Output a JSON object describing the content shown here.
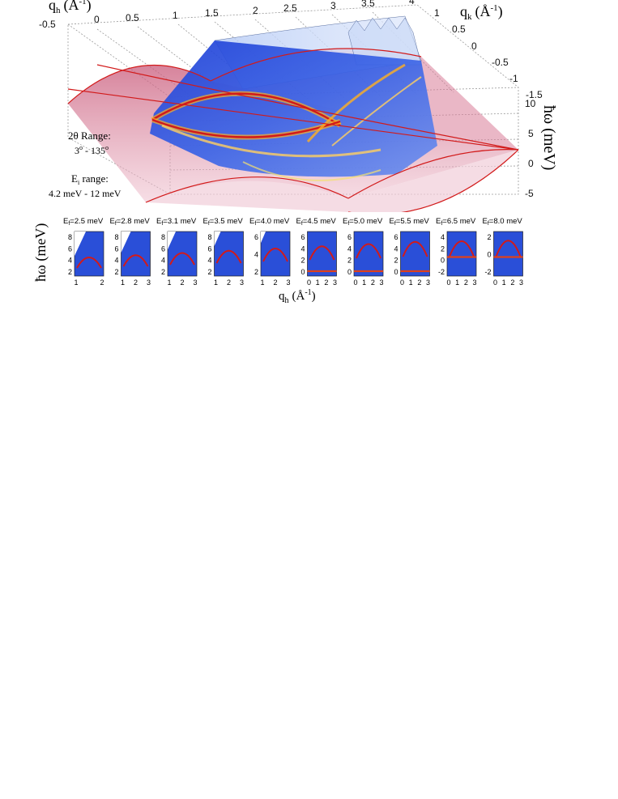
{
  "figure3d": {
    "axis_qh_label": "q",
    "axis_qh_sub": "h",
    "axis_qh_unit": "(Å",
    "axis_qh_unit_sup": "-1",
    "axis_qh_unit_close": ")",
    "qh_ticks": [
      "-0.5",
      "0",
      "0.5",
      "1",
      "1.5",
      "2",
      "2.5",
      "3",
      "3.5",
      "4"
    ],
    "axis_qk_label": "q",
    "axis_qk_sub": "k",
    "axis_qk_unit": "(Å",
    "axis_qk_unit_sup": "-1",
    "axis_qk_unit_close": ")",
    "qk_ticks": [
      "1",
      "0.5",
      "0",
      "-0.5",
      "-1",
      "-1.5"
    ],
    "axis_e_label": "ħω (meV)",
    "e_ticks": [
      "10",
      "5",
      "0",
      "-5"
    ],
    "two_theta_label": "2θ Range:",
    "two_theta_value_a": "3",
    "two_theta_value_sup1": "o",
    "two_theta_value_b": " - 135",
    "two_theta_value_sup2": "o",
    "ei_label_main": "E",
    "ei_label_sub": "i",
    "ei_label_rest": " range:",
    "ei_value": "4.2 meV - 12 meV"
  },
  "panels": {
    "ylabel": "ħω (meV)",
    "xlabel_main": "q",
    "xlabel_sub": "h",
    "xlabel_unit": "(Å",
    "xlabel_sup": "-1",
    "xlabel_close": ")",
    "items": [
      {
        "ef_prefix": "E",
        "ef_sub": "f",
        "ef_value": "=2.5 meV",
        "yticks": [
          "8",
          "6",
          "4",
          "2"
        ],
        "xticks": [
          "1",
          "2"
        ]
      },
      {
        "ef_prefix": "E",
        "ef_sub": "f",
        "ef_value": "=2.8 meV",
        "yticks": [
          "8",
          "6",
          "4",
          "2"
        ],
        "xticks": [
          "1",
          "2",
          "3"
        ]
      },
      {
        "ef_prefix": "E",
        "ef_sub": "f",
        "ef_value": "=3.1 meV",
        "yticks": [
          "8",
          "6",
          "4",
          "2"
        ],
        "xticks": [
          "1",
          "2",
          "3"
        ]
      },
      {
        "ef_prefix": "E",
        "ef_sub": "f",
        "ef_value": "=3.5 meV",
        "yticks": [
          "8",
          "6",
          "4",
          "2"
        ],
        "xticks": [
          "1",
          "2",
          "3"
        ]
      },
      {
        "ef_prefix": "E",
        "ef_sub": "f",
        "ef_value": "=4.0 meV",
        "yticks": [
          "6",
          "4",
          "2"
        ],
        "xticks": [
          "1",
          "2",
          "3"
        ]
      },
      {
        "ef_prefix": "E",
        "ef_sub": "f",
        "ef_value": "=4.5 meV",
        "yticks": [
          "6",
          "4",
          "2",
          "0"
        ],
        "xticks": [
          "0",
          "1",
          "2",
          "3"
        ]
      },
      {
        "ef_prefix": "E",
        "ef_sub": "f",
        "ef_value": "=5.0 meV",
        "yticks": [
          "6",
          "4",
          "2",
          "0"
        ],
        "xticks": [
          "0",
          "1",
          "2",
          "3"
        ]
      },
      {
        "ef_prefix": "E",
        "ef_sub": "f",
        "ef_value": "=5.5 meV",
        "yticks": [
          "6",
          "4",
          "2",
          "0"
        ],
        "xticks": [
          "0",
          "1",
          "2",
          "3"
        ]
      },
      {
        "ef_prefix": "E",
        "ef_sub": "f",
        "ef_value": "=6.5 meV",
        "yticks": [
          "4",
          "2",
          "0",
          "-2"
        ],
        "xticks": [
          "0",
          "1",
          "2",
          "3"
        ]
      },
      {
        "ef_prefix": "E",
        "ef_sub": "f",
        "ef_value": "=8.0 meV",
        "yticks": [
          "2",
          "0",
          "-2"
        ],
        "xticks": [
          "0",
          "1",
          "2",
          "3"
        ]
      }
    ]
  },
  "colors": {
    "map_blue": "#2a4fd8",
    "dispersion_red": "#d21a1a",
    "cone_pink": "#e7a3b6",
    "grid_gray": "#9a9a9a"
  }
}
